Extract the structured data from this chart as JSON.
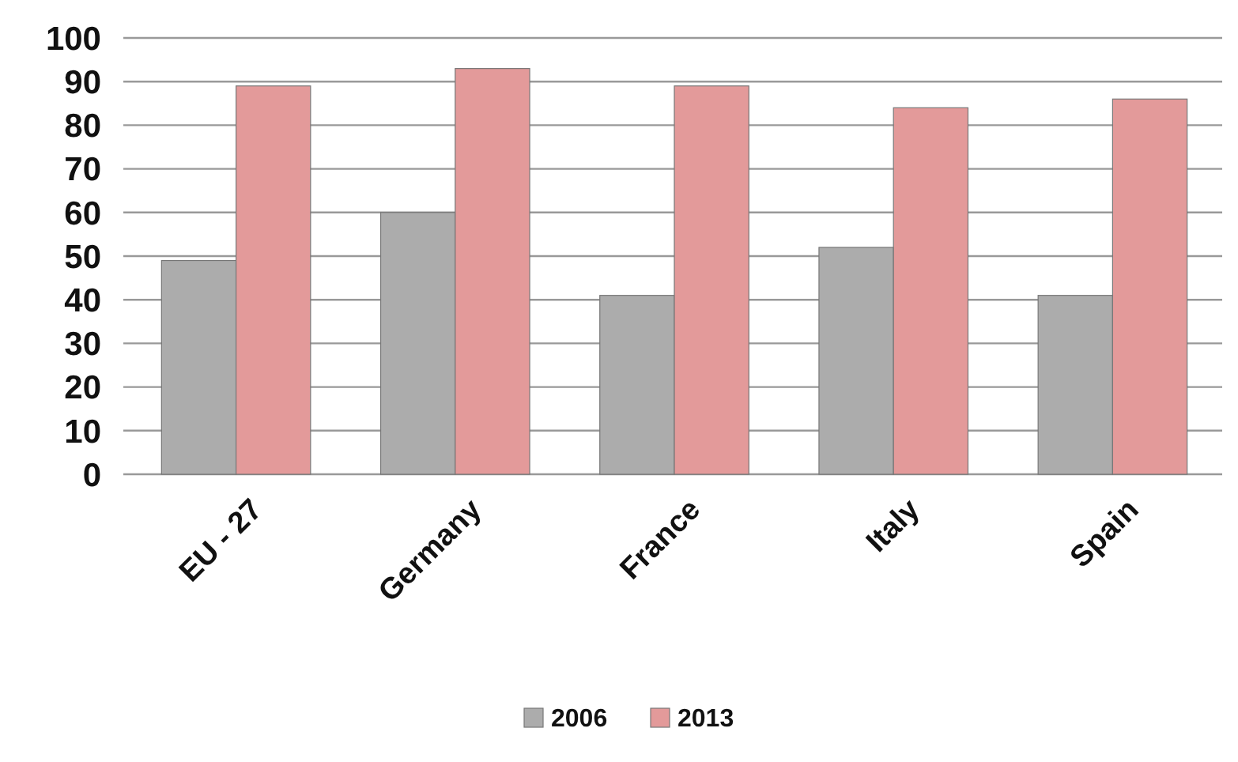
{
  "chart_data": {
    "type": "bar",
    "categories": [
      "EU - 27",
      "Germany",
      "France",
      "Italy",
      "Spain"
    ],
    "series": [
      {
        "name": "2006",
        "color": "#acacac",
        "values": [
          49,
          60,
          41,
          52,
          41
        ]
      },
      {
        "name": "2013",
        "color": "#e39a9a",
        "values": [
          89,
          93,
          89,
          84,
          86
        ]
      }
    ],
    "ylim": [
      0,
      100
    ],
    "yticks": [
      0,
      10,
      20,
      30,
      40,
      50,
      60,
      70,
      80,
      90,
      100
    ],
    "grid": "y",
    "legend": "bottom"
  }
}
